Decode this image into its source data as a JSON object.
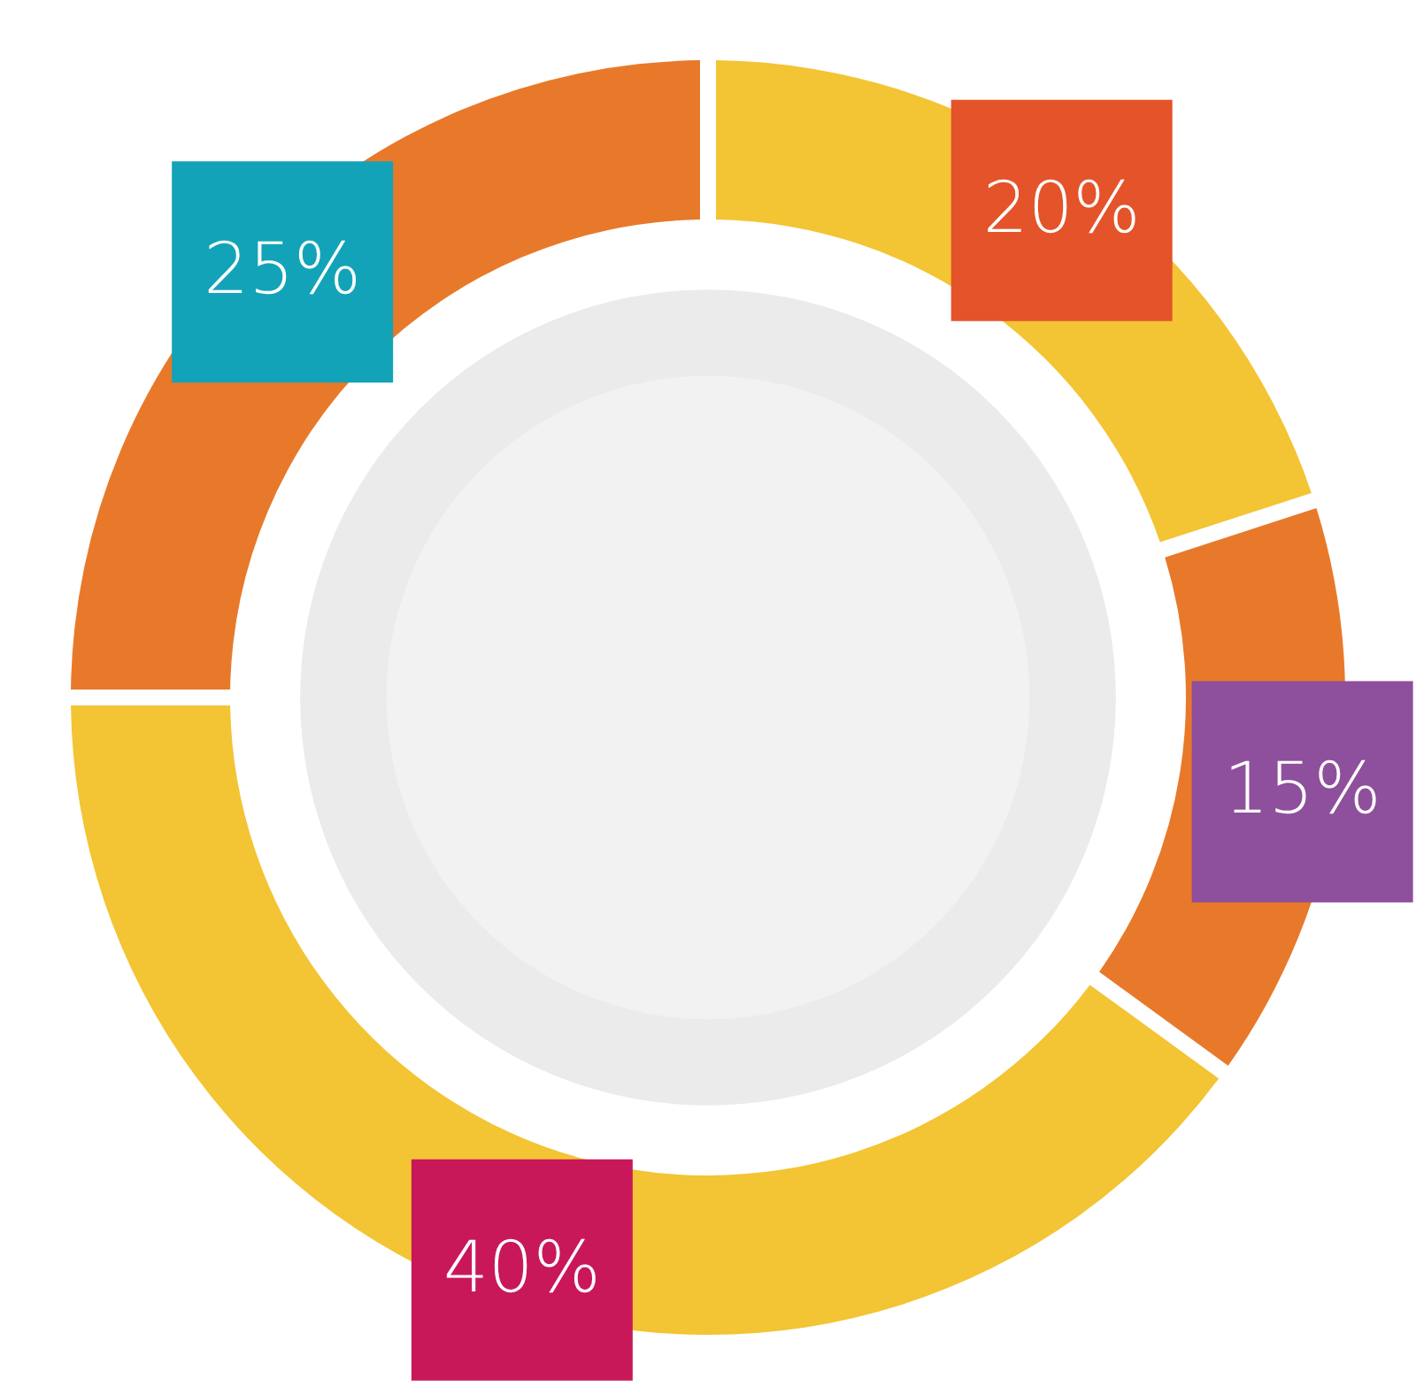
{
  "chart_data": {
    "type": "donut",
    "categories": [
      null,
      null,
      null,
      null
    ],
    "values": [
      20,
      15,
      40,
      25
    ],
    "colors": [
      "#f3c433",
      "#e8792a",
      "#f3c433",
      "#e8792a"
    ],
    "value_labels": [
      "20%",
      "15%",
      "40%",
      "25%"
    ],
    "legend": false
  }
}
